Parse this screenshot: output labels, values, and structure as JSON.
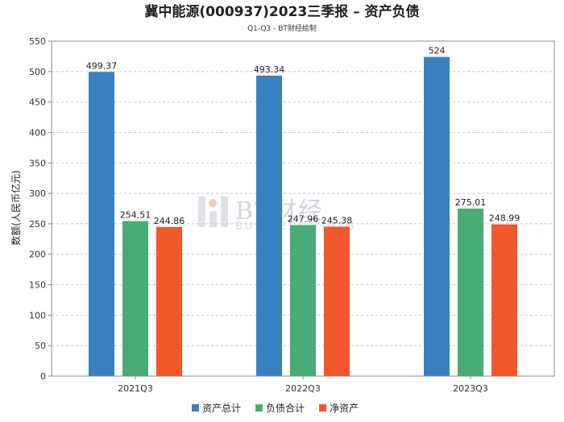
{
  "chart_data": {
    "type": "bar",
    "title": "冀中能源(000937)2023三季报 – 资产负债",
    "subtitle": "Q1-Q3 - BT财经绘制",
    "ylabel": "数额(人民币亿元)",
    "categories": [
      "2021Q3",
      "2022Q3",
      "2023Q3"
    ],
    "ylim": [
      0,
      550
    ],
    "yticks": [
      0,
      50,
      100,
      150,
      200,
      250,
      300,
      350,
      400,
      450,
      500,
      550
    ],
    "grid": true,
    "legend_position": "bottom",
    "series": [
      {
        "name": "资产总计",
        "color": "#3a80bf",
        "values": [
          499.37,
          493.34,
          524
        ],
        "labels": [
          "499.37",
          "493.34",
          "524"
        ]
      },
      {
        "name": "负债合计",
        "color": "#48ac77",
        "values": [
          254.51,
          247.96,
          275.01
        ],
        "labels": [
          "254.51",
          "247.96",
          "275.01"
        ]
      },
      {
        "name": "净资产",
        "color": "#f0572a",
        "values": [
          244.86,
          245.38,
          248.99
        ],
        "labels": [
          "244.86",
          "245.38",
          "248.99"
        ]
      }
    ]
  },
  "watermark": {
    "text": "BT财经",
    "subtext": "BUSINESS TIMES"
  }
}
